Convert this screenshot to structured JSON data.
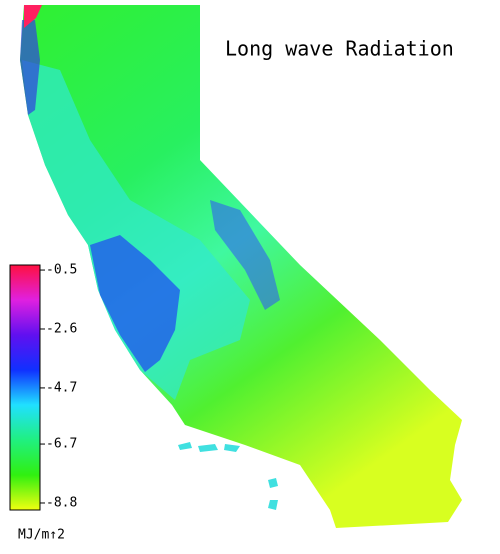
{
  "title": "Long wave Radiation",
  "colorbar": {
    "label": "MJ/m↑2",
    "range": [
      -9.05,
      -0.32
    ],
    "ticks": [
      -0.5,
      -2.6,
      -4.7,
      -6.7,
      -8.8
    ],
    "colors": [
      "#ff1040",
      "#e020e0",
      "#6010f0",
      "#1030ff",
      "#20e0ff",
      "#20f080",
      "#30f010",
      "#f0ff10"
    ]
  }
}
